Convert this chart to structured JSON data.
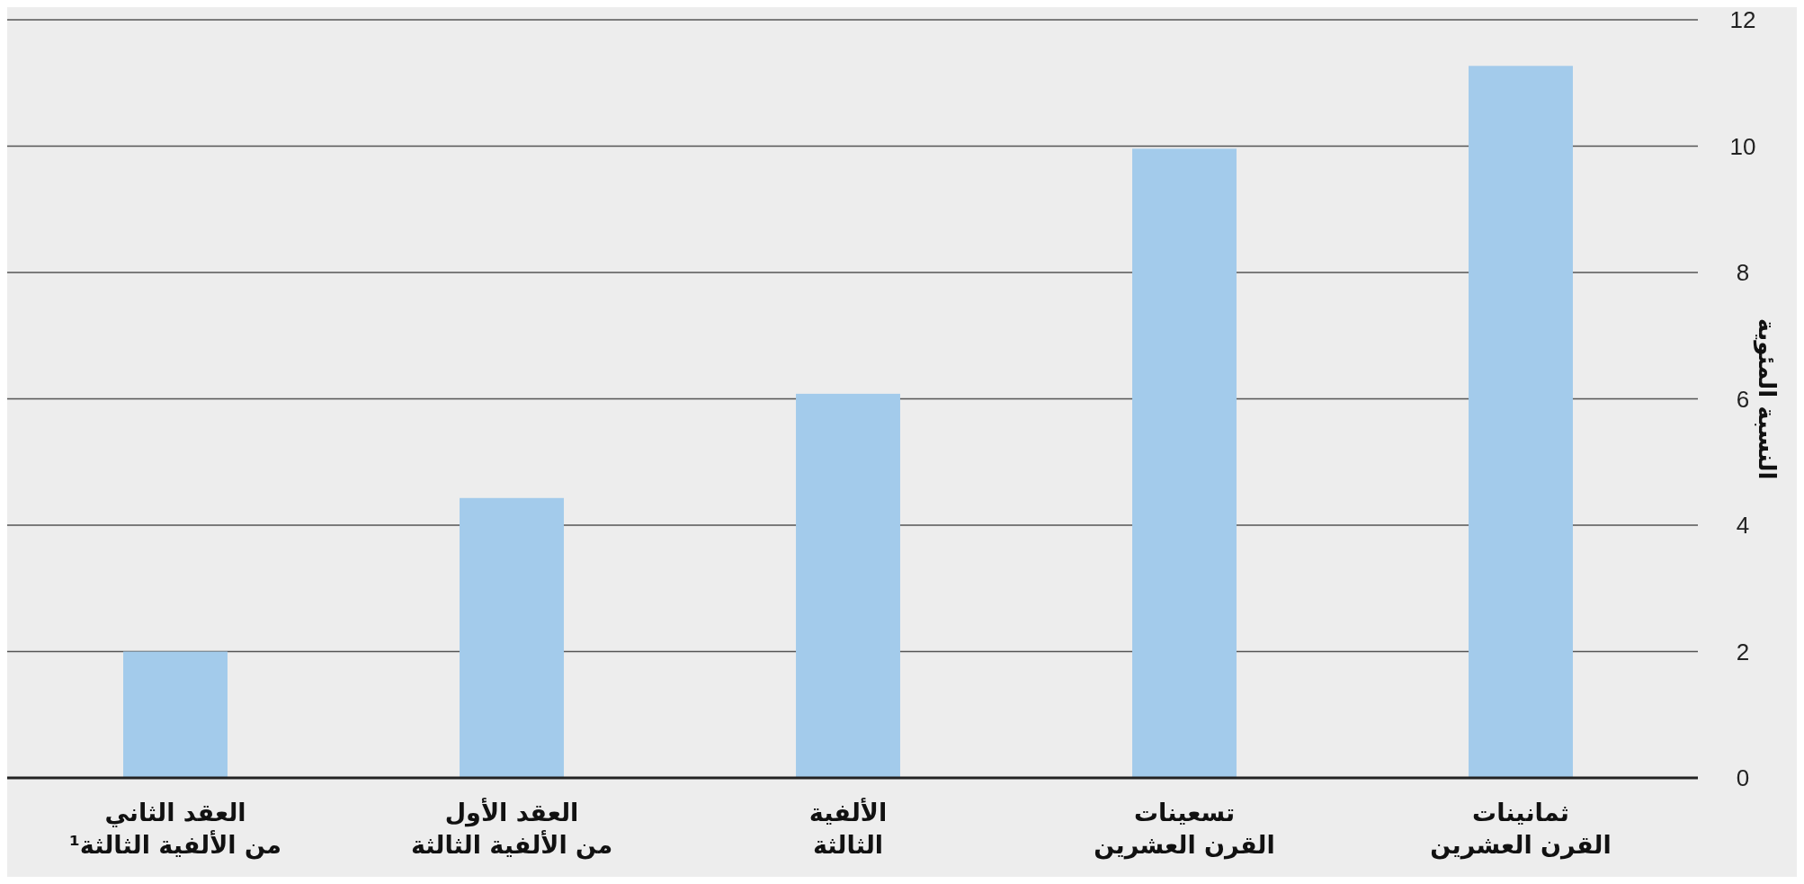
{
  "chart_data": {
    "type": "bar",
    "ylabel": "النسبة المئوية",
    "categories": [
      "العقد الثاني\nمن الألفية الثالثة¹",
      "العقد الأول\nمن الألفية الثالثة",
      "الألفية\nالثالثة",
      "تسعينات\nالقرن العشرين",
      "ثمانينات\nالقرن العشرين"
    ],
    "values": [
      2.0,
      4.43,
      6.08,
      9.96,
      11.27
    ],
    "color": "#a3cbeb",
    "ylim": [
      0,
      12
    ],
    "yticks": [
      0,
      2,
      4,
      6,
      8,
      10,
      12
    ],
    "grid": "y"
  }
}
